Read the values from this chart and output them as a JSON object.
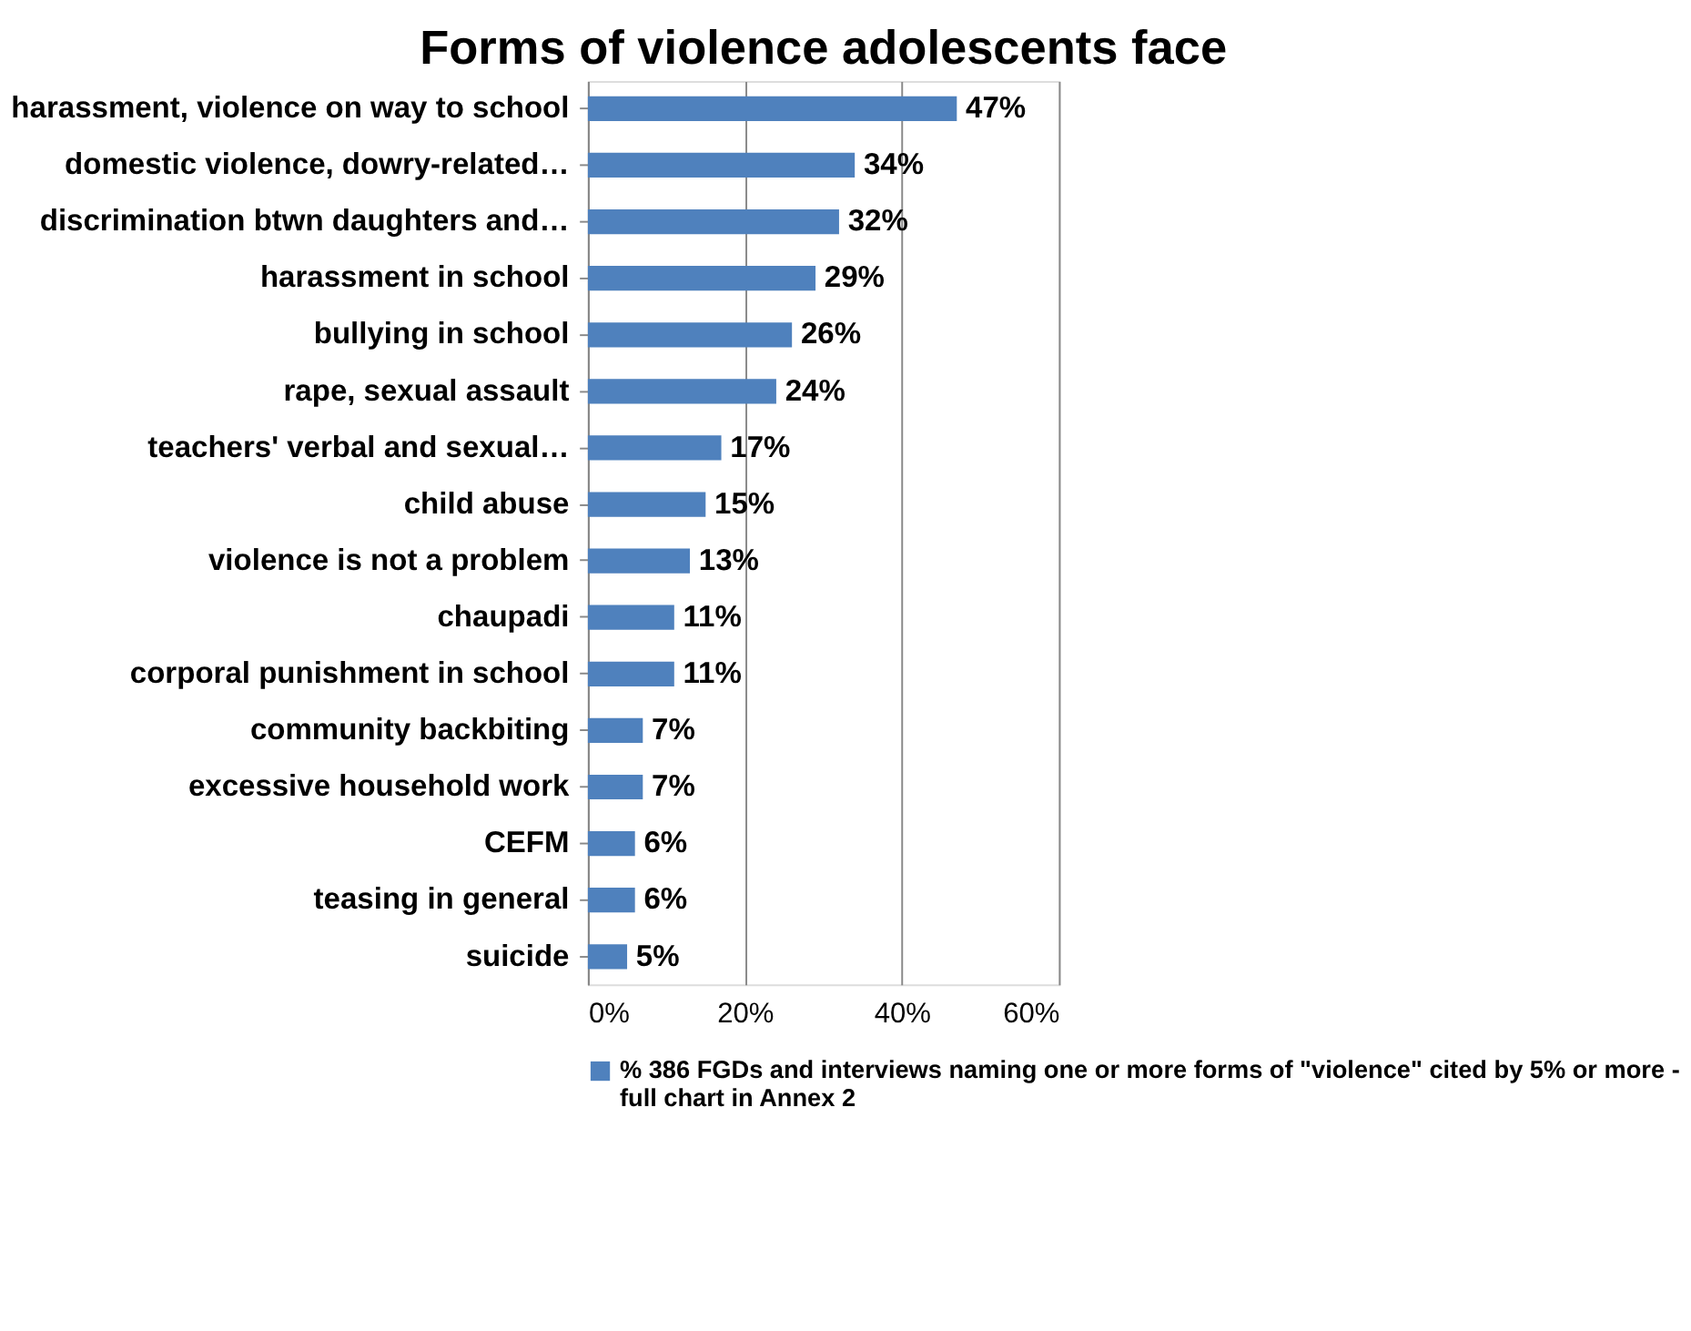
{
  "chart_data": {
    "type": "bar",
    "orientation": "horizontal",
    "title": "Forms of violence adolescents face",
    "categories": [
      "harassment, violence on way to school",
      "domestic violence, dowry-related…",
      "discrimination btwn daughters and…",
      "harassment in school",
      "bullying in school",
      "rape, sexual assault",
      "teachers' verbal and sexual…",
      "child abuse",
      "violence is not a problem",
      "chaupadi",
      "corporal punishment in school",
      "community backbiting",
      "excessive household work ",
      "CEFM ",
      "teasing in general",
      "suicide"
    ],
    "series": [
      {
        "name": "% 386 FGDs and interviews naming one or more forms of \"violence\" cited by 5% or more - full chart in Annex 2",
        "color": "#4f81bd",
        "values": [
          47,
          34,
          32,
          29,
          26,
          24,
          17,
          15,
          13,
          11,
          11,
          7,
          7,
          6,
          6,
          5
        ],
        "value_labels": [
          "47%",
          "34%",
          "32%",
          "29%",
          "26%",
          "24%",
          "17%",
          "15%",
          "13%",
          "11%",
          "11%",
          "7%",
          "7%",
          "6%",
          "6%",
          "5%"
        ]
      }
    ],
    "xlim": [
      0,
      60
    ],
    "xticks": [
      {
        "value": 0,
        "label": "0%"
      },
      {
        "value": 20,
        "label": "20%"
      },
      {
        "value": 40,
        "label": "40%"
      },
      {
        "value": 60,
        "label": "60%"
      }
    ],
    "grid": "x",
    "legend": "bottom"
  }
}
